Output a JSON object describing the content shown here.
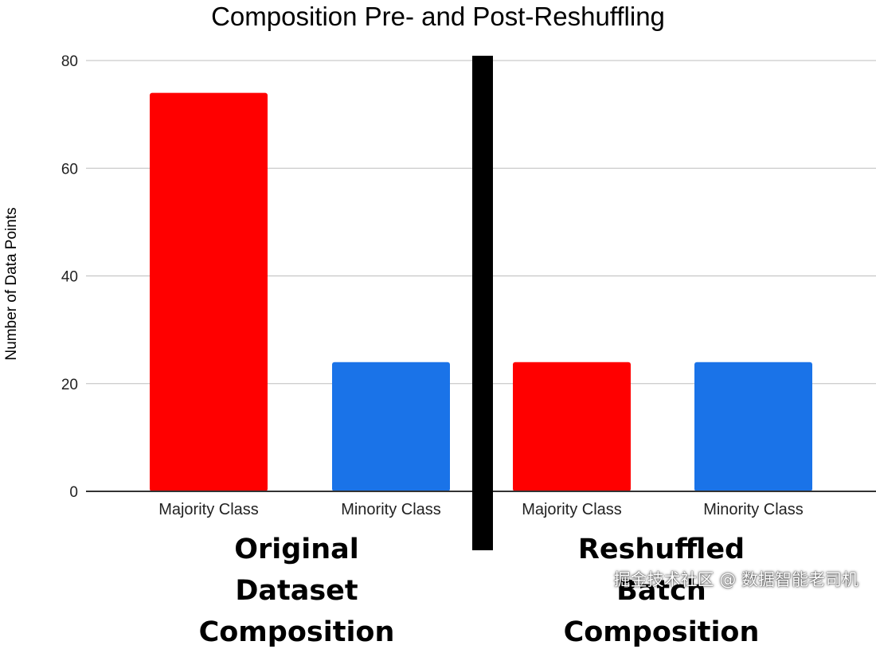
{
  "chart_data": {
    "type": "bar",
    "title": "Composition Pre- and Post-Reshuffling",
    "xlabel": "",
    "ylabel": "Number of Data Points",
    "ylim": [
      0,
      80
    ],
    "yticks": [
      0,
      20,
      40,
      60,
      80
    ],
    "grid": true,
    "categories": [
      "Majority Class",
      "Minority Class",
      "Majority Class",
      "Minority Class"
    ],
    "values": [
      74,
      24,
      24,
      24
    ],
    "bar_colors": [
      "#ff0000",
      "#1a73e8",
      "#ff0000",
      "#1a73e8"
    ],
    "groups": [
      {
        "label": "Original Dataset Composition",
        "category_indices": [
          0,
          1
        ]
      },
      {
        "label": "Reshuffled Batch Composition",
        "category_indices": [
          2,
          3
        ]
      }
    ],
    "divider_color": "#000000"
  },
  "watermark": "掘金技术社区 @ 数据智能老司机"
}
